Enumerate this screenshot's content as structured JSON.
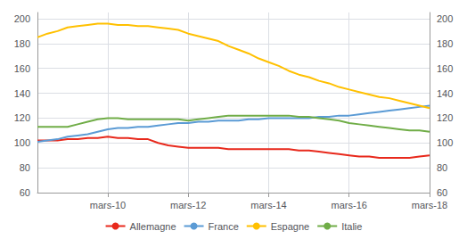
{
  "chart_data": {
    "type": "line",
    "x": [
      2008.25,
      2008.5,
      2008.75,
      2009.0,
      2009.25,
      2009.5,
      2009.75,
      2010.0,
      2010.25,
      2010.5,
      2010.75,
      2011.0,
      2011.25,
      2011.5,
      2011.75,
      2012.0,
      2012.25,
      2012.5,
      2012.75,
      2013.0,
      2013.25,
      2013.5,
      2013.75,
      2014.0,
      2014.25,
      2014.5,
      2014.75,
      2015.0,
      2015.25,
      2015.5,
      2015.75,
      2016.0,
      2016.25,
      2016.5,
      2016.75,
      2017.0,
      2017.25,
      2017.5,
      2017.75,
      2018.0
    ],
    "series": [
      {
        "name": "Allemagne",
        "color": "#e8291c",
        "values": [
          102,
          102,
          102,
          103,
          103,
          104,
          104,
          105,
          104,
          104,
          103,
          103,
          100,
          98,
          97,
          96,
          96,
          96,
          96,
          95,
          95,
          95,
          95,
          95,
          95,
          95,
          94,
          94,
          93,
          92,
          91,
          90,
          89,
          89,
          88,
          88,
          88,
          88,
          89,
          90
        ]
      },
      {
        "name": "France",
        "color": "#5b9bd5",
        "values": [
          101,
          102,
          103,
          105,
          106,
          107,
          109,
          111,
          112,
          112,
          113,
          113,
          114,
          115,
          116,
          116,
          117,
          117,
          118,
          118,
          118,
          119,
          119,
          120,
          120,
          120,
          120,
          120,
          121,
          121,
          122,
          122,
          123,
          124,
          125,
          126,
          127,
          128,
          129,
          130
        ]
      },
      {
        "name": "Espagne",
        "color": "#ffc000",
        "values": [
          185,
          188,
          190,
          193,
          194,
          195,
          196,
          196,
          195,
          195,
          194,
          194,
          193,
          192,
          191,
          188,
          186,
          184,
          182,
          178,
          175,
          172,
          168,
          165,
          162,
          158,
          155,
          153,
          150,
          148,
          145,
          143,
          141,
          139,
          137,
          136,
          134,
          132,
          130,
          128
        ]
      },
      {
        "name": "Italie",
        "color": "#70ad47",
        "values": [
          113,
          113,
          113,
          113,
          115,
          117,
          119,
          120,
          120,
          119,
          119,
          119,
          119,
          119,
          119,
          118,
          119,
          120,
          121,
          122,
          122,
          122,
          122,
          122,
          122,
          122,
          121,
          121,
          120,
          119,
          118,
          116,
          115,
          114,
          113,
          112,
          111,
          110,
          110,
          109
        ]
      }
    ],
    "xlim": [
      2008.25,
      2018.0
    ],
    "xticks": [
      {
        "value": 2010,
        "label": "mars-10"
      },
      {
        "value": 2012,
        "label": "mars-12"
      },
      {
        "value": 2014,
        "label": "mars-14"
      },
      {
        "value": 2016,
        "label": "mars-16"
      },
      {
        "value": 2018,
        "label": "mars-18"
      }
    ],
    "ylim": [
      60,
      205
    ],
    "yticks": [
      60,
      80,
      100,
      120,
      140,
      160,
      180,
      200
    ],
    "y2lim": [
      60,
      205
    ],
    "y2ticks": [
      60,
      80,
      100,
      120,
      140,
      160,
      180,
      200
    ],
    "grid": true,
    "legend": "bottom"
  }
}
